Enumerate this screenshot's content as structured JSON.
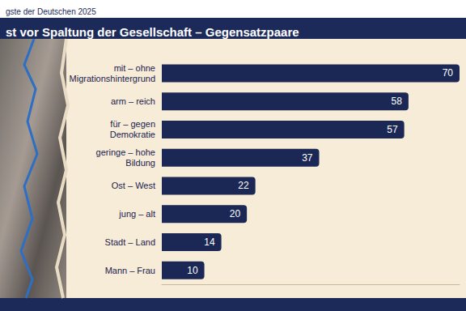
{
  "chart_data": {
    "type": "bar",
    "header": "gste der Deutschen 2025",
    "title": "st vor Spaltung der Gesellschaft – Gegensatzpaare",
    "categories": [
      "mit – ohne\nMigrationshintergrund",
      "arm – reich",
      "für – gegen\nDemokratie",
      "geringe – hohe\nBildung",
      "Ost – West",
      "jung – alt",
      "Stadt – Land",
      "Mann – Frau"
    ],
    "values": [
      70,
      58,
      57,
      37,
      22,
      20,
      14,
      10
    ],
    "color": "#1b2856",
    "orientation": "horizontal",
    "data_labels": true,
    "tick_labels": "y",
    "xlim": [
      0,
      70
    ],
    "xticks": [],
    "grid": false
  }
}
